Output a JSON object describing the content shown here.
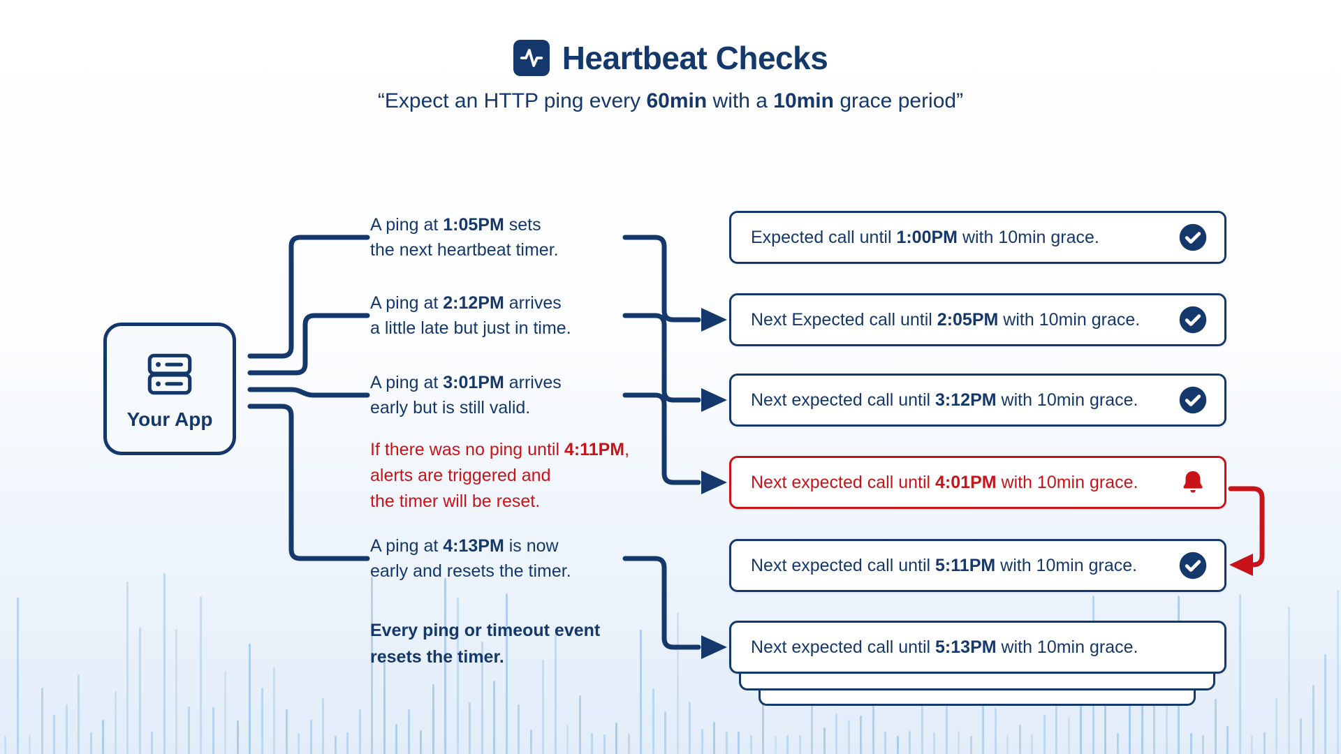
{
  "colors": {
    "navy": "#14386b",
    "red": "#c81418",
    "bars": "#9cc3e8"
  },
  "header": {
    "title": "Heartbeat Checks",
    "subtitle": {
      "p1": "“Expect an HTTP ping every ",
      "b1": "60min",
      "p2": " with a ",
      "b2": "10min",
      "p3": " grace period”"
    }
  },
  "app_node": {
    "label": "Your App"
  },
  "annotations": [
    {
      "p1": "A ping at ",
      "b": "1:05PM",
      "p2": " sets",
      "l2": "the next heartbeat timer."
    },
    {
      "p1": "A ping at ",
      "b": "2:12PM",
      "p2": " arrives",
      "l2": "a little late but just in time."
    },
    {
      "p1": "A ping at ",
      "b": "3:01PM",
      "p2": " arrives",
      "l2": "early but is still valid."
    },
    {
      "p1": "If there was no ping until ",
      "b": "4:11PM",
      "p2": ",",
      "l2": "alerts are triggered and",
      "l3": "the timer will be reset."
    },
    {
      "p1": "A ping at ",
      "b": "4:13PM",
      "p2": " is now",
      "l2": "early and resets the timer."
    }
  ],
  "note": {
    "l1": "Every ping or timeout event",
    "l2": "resets the timer."
  },
  "status_boxes": [
    {
      "p1": "Expected call until ",
      "b": "1:00PM",
      "p2": " with 10min grace."
    },
    {
      "p1": "Next Expected call until ",
      "b": "2:05PM",
      "p2": " with 10min grace."
    },
    {
      "p1": "Next expected call until ",
      "b": "3:12PM",
      "p2": " with 10min grace."
    },
    {
      "p1": "Next expected call until ",
      "b": "4:01PM",
      "p2": " with 10min grace."
    },
    {
      "p1": "Next expected call until ",
      "b": "5:11PM",
      "p2": " with 10min grace."
    },
    {
      "p1": "Next expected call until ",
      "b": "5:13PM",
      "p2": " with 10min grace."
    }
  ]
}
